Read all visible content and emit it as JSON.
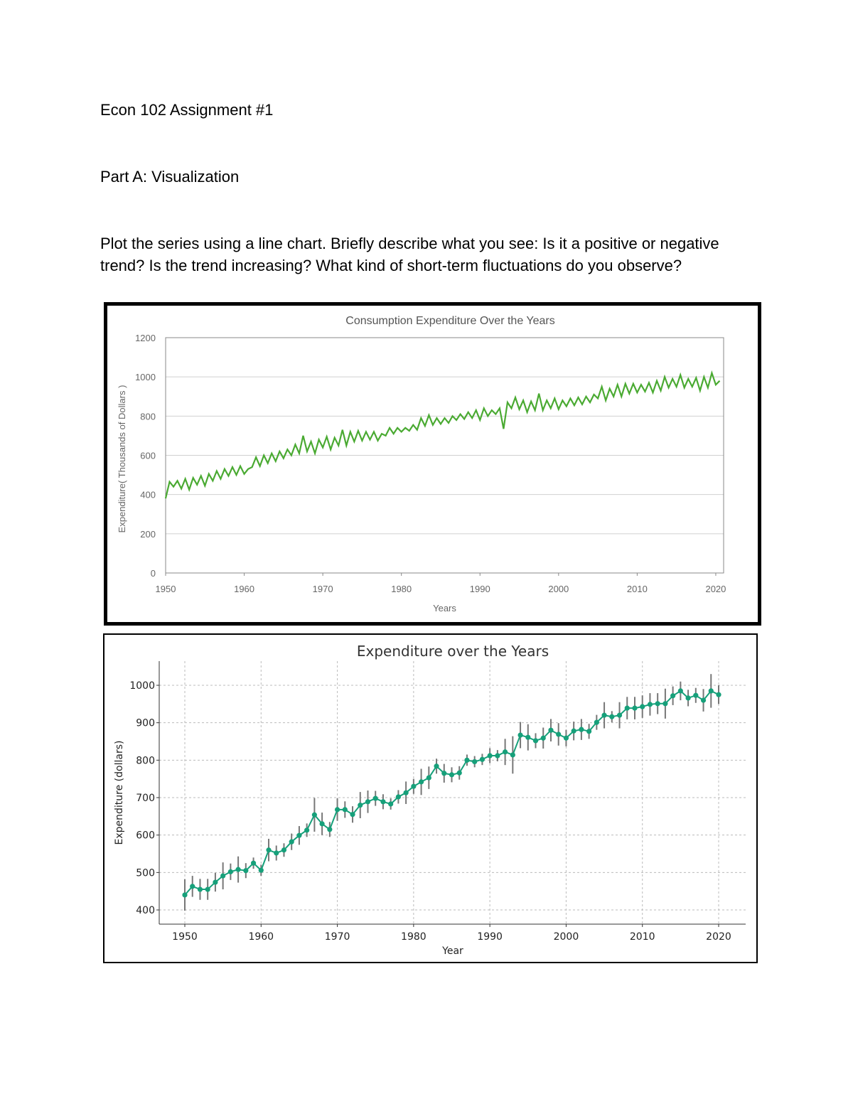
{
  "document": {
    "title": "Econ 102 Assignment #1",
    "part": "Part A: Visualization",
    "prompt": " Plot the series using a line chart. Briefly describe what you see: Is it a positive or negative trend? Is the trend increasing? What kind of short-term fluctuations do you observe?"
  },
  "chart_data": [
    {
      "type": "line",
      "title": "Consumption Expenditure Over the Years",
      "xlabel": "Years",
      "ylabel": "Expenditure( Thousands of Dollars )",
      "xlim": [
        1950,
        2021
      ],
      "ylim": [
        0,
        1200
      ],
      "xticks": [
        "1950",
        "1960",
        "1970",
        "1980",
        "1990",
        "2000",
        "2010",
        "2020"
      ],
      "yticks": [
        "0",
        "200",
        "400",
        "600",
        "800",
        "1000",
        "1200"
      ],
      "grid": "horizontal",
      "color": "#4aaa32",
      "x_start": 1950,
      "points_per_year": 2,
      "values": [
        380,
        465,
        440,
        470,
        430,
        480,
        425,
        485,
        450,
        495,
        445,
        505,
        470,
        520,
        480,
        530,
        495,
        540,
        500,
        545,
        505,
        530,
        540,
        590,
        545,
        600,
        560,
        610,
        570,
        620,
        585,
        630,
        600,
        655,
        610,
        700,
        620,
        670,
        610,
        680,
        640,
        695,
        630,
        690,
        650,
        730,
        650,
        720,
        670,
        725,
        675,
        720,
        680,
        720,
        675,
        710,
        700,
        740,
        710,
        740,
        720,
        740,
        725,
        755,
        730,
        790,
        750,
        805,
        755,
        790,
        760,
        790,
        765,
        800,
        780,
        810,
        785,
        820,
        790,
        830,
        780,
        840,
        800,
        830,
        810,
        840,
        735,
        870,
        840,
        895,
        835,
        880,
        820,
        875,
        830,
        915,
        830,
        880,
        840,
        890,
        835,
        880,
        850,
        890,
        855,
        895,
        860,
        900,
        870,
        910,
        890,
        950,
        880,
        940,
        900,
        960,
        900,
        965,
        915,
        965,
        920,
        960,
        925,
        970,
        920,
        980,
        930,
        1000,
        945,
        990,
        950,
        1010,
        945,
        990,
        950,
        995,
        930,
        1000,
        945,
        1020,
        960,
        980
      ]
    },
    {
      "type": "line",
      "title": "Expenditure over the Years",
      "xlabel": "Year",
      "ylabel": "Expenditure (dollars)",
      "xlim": [
        1946.5,
        2023.5
      ],
      "ylim": [
        365,
        1065
      ],
      "xticks": [
        "1950",
        "1960",
        "1970",
        "1980",
        "1990",
        "2000",
        "2010",
        "2020"
      ],
      "yticks": [
        "400",
        "500",
        "600",
        "700",
        "800",
        "900",
        "1000"
      ],
      "grid": "both, dashed",
      "color": "#16a07a",
      "error_color": "#777777",
      "x": [
        1950,
        1951,
        1952,
        1953,
        1954,
        1955,
        1956,
        1957,
        1958,
        1959,
        1960,
        1961,
        1962,
        1963,
        1964,
        1965,
        1966,
        1967,
        1968,
        1969,
        1970,
        1971,
        1972,
        1973,
        1974,
        1975,
        1976,
        1977,
        1978,
        1979,
        1980,
        1981,
        1982,
        1983,
        1984,
        1985,
        1986,
        1987,
        1988,
        1989,
        1990,
        1991,
        1992,
        1993,
        1994,
        1995,
        1996,
        1997,
        1998,
        1999,
        2000,
        2001,
        2002,
        2003,
        2004,
        2005,
        2006,
        2007,
        2008,
        2009,
        2010,
        2011,
        2012,
        2013,
        2014,
        2015,
        2016,
        2017,
        2018,
        2019,
        2020
      ],
      "values": [
        440,
        463,
        455,
        455,
        474,
        491,
        502,
        508,
        505,
        525,
        506,
        560,
        552,
        560,
        582,
        599,
        613,
        654,
        630,
        615,
        668,
        668,
        655,
        680,
        689,
        698,
        689,
        683,
        702,
        713,
        730,
        742,
        753,
        784,
        765,
        761,
        766,
        800,
        796,
        802,
        812,
        812,
        822,
        814,
        867,
        861,
        852,
        859,
        880,
        869,
        859,
        878,
        882,
        877,
        901,
        920,
        916,
        920,
        939,
        939,
        943,
        949,
        951,
        951,
        972,
        985,
        966,
        973,
        960,
        985,
        975
      ],
      "errors": [
        42,
        28,
        28,
        28,
        25,
        36,
        22,
        35,
        20,
        15,
        15,
        30,
        20,
        18,
        22,
        25,
        18,
        45,
        30,
        20,
        30,
        22,
        22,
        35,
        30,
        20,
        20,
        15,
        18,
        30,
        20,
        35,
        30,
        20,
        25,
        20,
        18,
        15,
        15,
        15,
        20,
        15,
        35,
        50,
        35,
        35,
        20,
        28,
        30,
        30,
        22,
        25,
        28,
        20,
        20,
        35,
        15,
        35,
        30,
        30,
        30,
        30,
        28,
        40,
        25,
        25,
        22,
        20,
        30,
        45,
        25
      ]
    }
  ]
}
